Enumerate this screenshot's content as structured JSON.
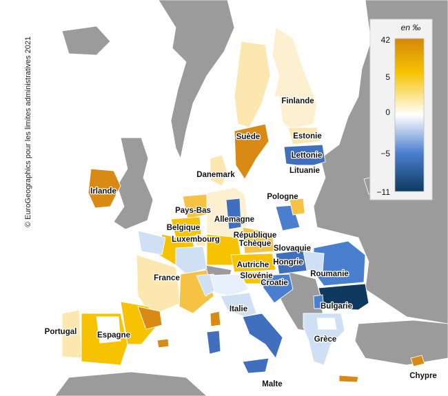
{
  "credit": "© EuroGeographics pour les limites administratives 2021",
  "legend": {
    "unit": "en ‰",
    "ticks": [
      "42",
      "5",
      "0",
      "−5",
      "−11"
    ],
    "colors": [
      "#d4870a",
      "#f7c200",
      "#ffffff",
      "#4a7fcf",
      "#0d3a5e"
    ]
  },
  "countries": [
    "Irlande",
    "Suède",
    "Finlande",
    "Estonie",
    "Lettonie",
    "Lituanie",
    "Danemark",
    "Pays-Bas",
    "Belgique",
    "Luxembourg",
    "Allemagne",
    "Pologne",
    "République",
    "Tchèque",
    "Slovaquie",
    "Autriche",
    "Hongrie",
    "Slovénie",
    "Croatie",
    "Roumanie",
    "Bulgarie",
    "France",
    "Italie",
    "Portugal",
    "Espagne",
    "Grèce",
    "Malte",
    "Chypre"
  ]
}
